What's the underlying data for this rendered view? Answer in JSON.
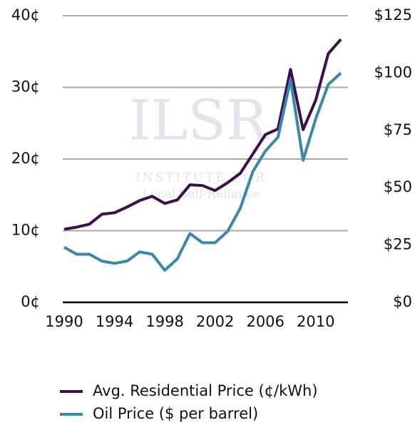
{
  "chart_data": {
    "type": "line",
    "watermark": [
      "ILSR",
      "INSTITUTE FOR",
      "Local Self-Reliance"
    ],
    "x": [
      1990,
      1991,
      1992,
      1993,
      1994,
      1995,
      1996,
      1997,
      1998,
      1999,
      2000,
      2001,
      2002,
      2003,
      2004,
      2005,
      2006,
      2007,
      2008,
      2009,
      2010,
      2011,
      2012
    ],
    "xlim": [
      1990,
      2012
    ],
    "xticks": [
      1990,
      1994,
      1998,
      2002,
      2006,
      2010
    ],
    "ylim": [
      0,
      40
    ],
    "yticks": [
      {
        "value": 0,
        "label": "0¢"
      },
      {
        "value": 10,
        "label": "10¢"
      },
      {
        "value": 20,
        "label": "20¢"
      },
      {
        "value": 30,
        "label": "30¢"
      },
      {
        "value": 40,
        "label": "40¢"
      }
    ],
    "y2lim": [
      0,
      125
    ],
    "y2ticks": [
      {
        "value": 0,
        "label": "$0"
      },
      {
        "value": 25,
        "label": "$25"
      },
      {
        "value": 50,
        "label": "$50"
      },
      {
        "value": 75,
        "label": "$75"
      },
      {
        "value": 100,
        "label": "$100"
      },
      {
        "value": 125,
        "label": "$125"
      }
    ],
    "grid": true,
    "legend": "bottom",
    "series": [
      {
        "name": "Avg. Residential Price (¢/kWh)",
        "color": "#3a0f4e",
        "values": [
          10.2,
          10.5,
          10.9,
          12.3,
          12.5,
          13.3,
          14.2,
          14.8,
          13.8,
          14.3,
          16.4,
          16.3,
          15.6,
          16.7,
          18.0,
          20.7,
          23.4,
          24.2,
          32.5,
          24.1,
          28.2,
          34.7,
          36.7
        ]
      },
      {
        "name": "Oil Price ($ per barrel)",
        "color": "#3a87a8",
        "axis": "y2",
        "values": [
          24,
          21,
          21,
          18,
          17,
          18,
          22,
          21,
          14,
          19,
          30,
          26,
          26,
          31,
          41,
          57,
          66,
          72,
          97,
          62,
          80,
          95,
          100
        ]
      }
    ]
  }
}
